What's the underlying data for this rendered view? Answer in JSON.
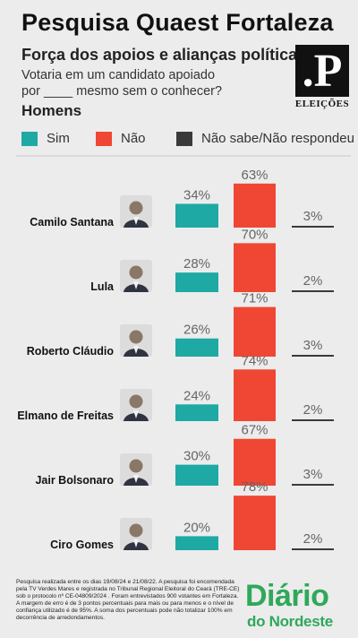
{
  "header": {
    "title": "Pesquisa Quaest Fortaleza",
    "subtitle": "Força dos apoios e alianças políticas",
    "question_line1": "Votaria em um candidato apoiado",
    "question_line2": "por ____ mesmo sem o conhecer?",
    "group": "Homens"
  },
  "logo": {
    "mark": ".P",
    "label": "ELEIÇÕES"
  },
  "colors": {
    "sim": "#1fa9a5",
    "nao": "#ef4733",
    "ns": "#3a3a3a",
    "background": "#ececec"
  },
  "chart_data": {
    "type": "bar",
    "categories": [
      "Camilo Santana",
      "Lula",
      "Roberto Cláudio",
      "Elmano de Freitas",
      "Jair Bolsonaro",
      "Ciro Gomes"
    ],
    "series": [
      {
        "name": "Sim",
        "values": [
          34,
          28,
          26,
          24,
          30,
          20
        ]
      },
      {
        "name": "Não",
        "values": [
          63,
          70,
          71,
          74,
          67,
          78
        ]
      },
      {
        "name": "Não sabe/Não respondeu",
        "values": [
          3,
          2,
          3,
          2,
          3,
          2
        ]
      }
    ],
    "value_labels": {
      "sim": [
        "34%",
        "28%",
        "26%",
        "24%",
        "30%",
        "20%"
      ],
      "nao": [
        "63%",
        "70%",
        "71%",
        "74%",
        "67%",
        "78%"
      ],
      "ns": [
        "3%",
        "2%",
        "3%",
        "2%",
        "3%",
        "2%"
      ]
    },
    "legend_position": "top",
    "grid": false
  },
  "footer": {
    "note": "Pesquisa realizada entre os dias 19/08/24 e 21/08/22. A pesquisa foi encomendada pela TV Verdes Mares e registrada no Tribunal Regional Eleitoral do Ceará (TRE-CE) sob o protocolo nº CE-04809/2024 . Foram entrevistados 900 votantes em Fortaleza. A margem de erro é de 3 pontos percentuais para mais ou para menos e o nível de confiança utilizado é de 95%. A soma dos percentuais pode não totalizar 100% em decorrência de arredondamentos.",
    "brand_line1": "Diário",
    "brand_line2": "do Nordeste"
  }
}
